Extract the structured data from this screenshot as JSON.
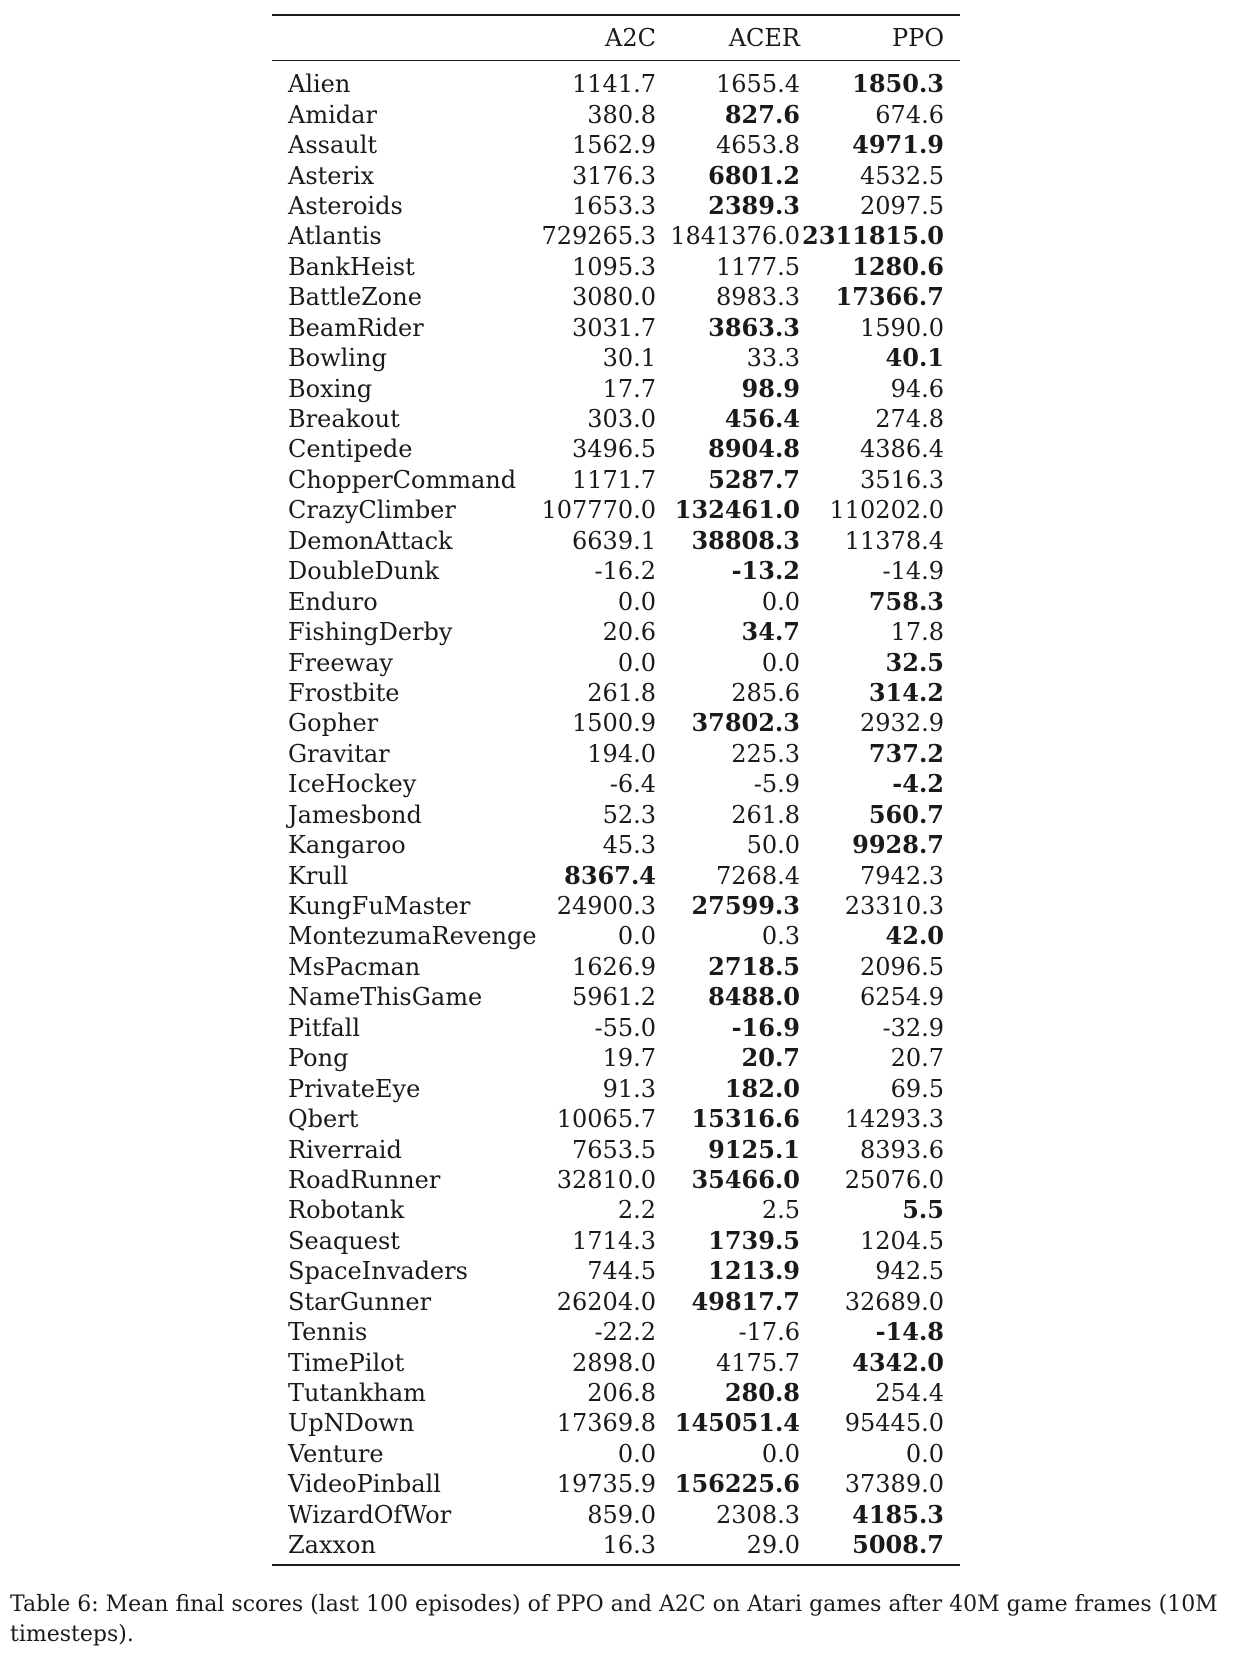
{
  "table": {
    "columns": [
      "",
      "A2C",
      "ACER",
      "PPO"
    ],
    "rows": [
      {
        "game": "Alien",
        "a2c": "1141.7",
        "acer": "1655.4",
        "ppo": "1850.3",
        "best": "ppo"
      },
      {
        "game": "Amidar",
        "a2c": "380.8",
        "acer": "827.6",
        "ppo": "674.6",
        "best": "acer"
      },
      {
        "game": "Assault",
        "a2c": "1562.9",
        "acer": "4653.8",
        "ppo": "4971.9",
        "best": "ppo"
      },
      {
        "game": "Asterix",
        "a2c": "3176.3",
        "acer": "6801.2",
        "ppo": "4532.5",
        "best": "acer"
      },
      {
        "game": "Asteroids",
        "a2c": "1653.3",
        "acer": "2389.3",
        "ppo": "2097.5",
        "best": "acer"
      },
      {
        "game": "Atlantis",
        "a2c": "729265.3",
        "acer": "1841376.0",
        "ppo": "2311815.0",
        "best": "ppo"
      },
      {
        "game": "BankHeist",
        "a2c": "1095.3",
        "acer": "1177.5",
        "ppo": "1280.6",
        "best": "ppo"
      },
      {
        "game": "BattleZone",
        "a2c": "3080.0",
        "acer": "8983.3",
        "ppo": "17366.7",
        "best": "ppo"
      },
      {
        "game": "BeamRider",
        "a2c": "3031.7",
        "acer": "3863.3",
        "ppo": "1590.0",
        "best": "acer"
      },
      {
        "game": "Bowling",
        "a2c": "30.1",
        "acer": "33.3",
        "ppo": "40.1",
        "best": "ppo"
      },
      {
        "game": "Boxing",
        "a2c": "17.7",
        "acer": "98.9",
        "ppo": "94.6",
        "best": "acer"
      },
      {
        "game": "Breakout",
        "a2c": "303.0",
        "acer": "456.4",
        "ppo": "274.8",
        "best": "acer"
      },
      {
        "game": "Centipede",
        "a2c": "3496.5",
        "acer": "8904.8",
        "ppo": "4386.4",
        "best": "acer"
      },
      {
        "game": "ChopperCommand",
        "a2c": "1171.7",
        "acer": "5287.7",
        "ppo": "3516.3",
        "best": "acer"
      },
      {
        "game": "CrazyClimber",
        "a2c": "107770.0",
        "acer": "132461.0",
        "ppo": "110202.0",
        "best": "acer"
      },
      {
        "game": "DemonAttack",
        "a2c": "6639.1",
        "acer": "38808.3",
        "ppo": "11378.4",
        "best": "acer"
      },
      {
        "game": "DoubleDunk",
        "a2c": "-16.2",
        "acer": "-13.2",
        "ppo": "-14.9",
        "best": "acer"
      },
      {
        "game": "Enduro",
        "a2c": "0.0",
        "acer": "0.0",
        "ppo": "758.3",
        "best": "ppo"
      },
      {
        "game": "FishingDerby",
        "a2c": "20.6",
        "acer": "34.7",
        "ppo": "17.8",
        "best": "acer"
      },
      {
        "game": "Freeway",
        "a2c": "0.0",
        "acer": "0.0",
        "ppo": "32.5",
        "best": "ppo"
      },
      {
        "game": "Frostbite",
        "a2c": "261.8",
        "acer": "285.6",
        "ppo": "314.2",
        "best": "ppo"
      },
      {
        "game": "Gopher",
        "a2c": "1500.9",
        "acer": "37802.3",
        "ppo": "2932.9",
        "best": "acer"
      },
      {
        "game": "Gravitar",
        "a2c": "194.0",
        "acer": "225.3",
        "ppo": "737.2",
        "best": "ppo"
      },
      {
        "game": "IceHockey",
        "a2c": "-6.4",
        "acer": "-5.9",
        "ppo": "-4.2",
        "best": "ppo"
      },
      {
        "game": "Jamesbond",
        "a2c": "52.3",
        "acer": "261.8",
        "ppo": "560.7",
        "best": "ppo"
      },
      {
        "game": "Kangaroo",
        "a2c": "45.3",
        "acer": "50.0",
        "ppo": "9928.7",
        "best": "ppo"
      },
      {
        "game": "Krull",
        "a2c": "8367.4",
        "acer": "7268.4",
        "ppo": "7942.3",
        "best": "a2c"
      },
      {
        "game": "KungFuMaster",
        "a2c": "24900.3",
        "acer": "27599.3",
        "ppo": "23310.3",
        "best": "acer"
      },
      {
        "game": "MontezumaRevenge",
        "a2c": "0.0",
        "acer": "0.3",
        "ppo": "42.0",
        "best": "ppo"
      },
      {
        "game": "MsPacman",
        "a2c": "1626.9",
        "acer": "2718.5",
        "ppo": "2096.5",
        "best": "acer"
      },
      {
        "game": "NameThisGame",
        "a2c": "5961.2",
        "acer": "8488.0",
        "ppo": "6254.9",
        "best": "acer"
      },
      {
        "game": "Pitfall",
        "a2c": "-55.0",
        "acer": "-16.9",
        "ppo": "-32.9",
        "best": "acer"
      },
      {
        "game": "Pong",
        "a2c": "19.7",
        "acer": "20.7",
        "ppo": "20.7",
        "best": "acer"
      },
      {
        "game": "PrivateEye",
        "a2c": "91.3",
        "acer": "182.0",
        "ppo": "69.5",
        "best": "acer"
      },
      {
        "game": "Qbert",
        "a2c": "10065.7",
        "acer": "15316.6",
        "ppo": "14293.3",
        "best": "acer"
      },
      {
        "game": "Riverraid",
        "a2c": "7653.5",
        "acer": "9125.1",
        "ppo": "8393.6",
        "best": "acer"
      },
      {
        "game": "RoadRunner",
        "a2c": "32810.0",
        "acer": "35466.0",
        "ppo": "25076.0",
        "best": "acer"
      },
      {
        "game": "Robotank",
        "a2c": "2.2",
        "acer": "2.5",
        "ppo": "5.5",
        "best": "ppo"
      },
      {
        "game": "Seaquest",
        "a2c": "1714.3",
        "acer": "1739.5",
        "ppo": "1204.5",
        "best": "acer"
      },
      {
        "game": "SpaceInvaders",
        "a2c": "744.5",
        "acer": "1213.9",
        "ppo": "942.5",
        "best": "acer"
      },
      {
        "game": "StarGunner",
        "a2c": "26204.0",
        "acer": "49817.7",
        "ppo": "32689.0",
        "best": "acer"
      },
      {
        "game": "Tennis",
        "a2c": "-22.2",
        "acer": "-17.6",
        "ppo": "-14.8",
        "best": "ppo"
      },
      {
        "game": "TimePilot",
        "a2c": "2898.0",
        "acer": "4175.7",
        "ppo": "4342.0",
        "best": "ppo"
      },
      {
        "game": "Tutankham",
        "a2c": "206.8",
        "acer": "280.8",
        "ppo": "254.4",
        "best": "acer"
      },
      {
        "game": "UpNDown",
        "a2c": "17369.8",
        "acer": "145051.4",
        "ppo": "95445.0",
        "best": "acer"
      },
      {
        "game": "Venture",
        "a2c": "0.0",
        "acer": "0.0",
        "ppo": "0.0",
        "best": ""
      },
      {
        "game": "VideoPinball",
        "a2c": "19735.9",
        "acer": "156225.6",
        "ppo": "37389.0",
        "best": "acer"
      },
      {
        "game": "WizardOfWor",
        "a2c": "859.0",
        "acer": "2308.3",
        "ppo": "4185.3",
        "best": "ppo"
      },
      {
        "game": "Zaxxon",
        "a2c": "16.3",
        "acer": "29.0",
        "ppo": "5008.7",
        "best": "ppo"
      }
    ]
  },
  "caption": "Table 6: Mean final scores (last 100 episodes) of PPO and A2C on Atari games after 40M game frames (10M timesteps)."
}
